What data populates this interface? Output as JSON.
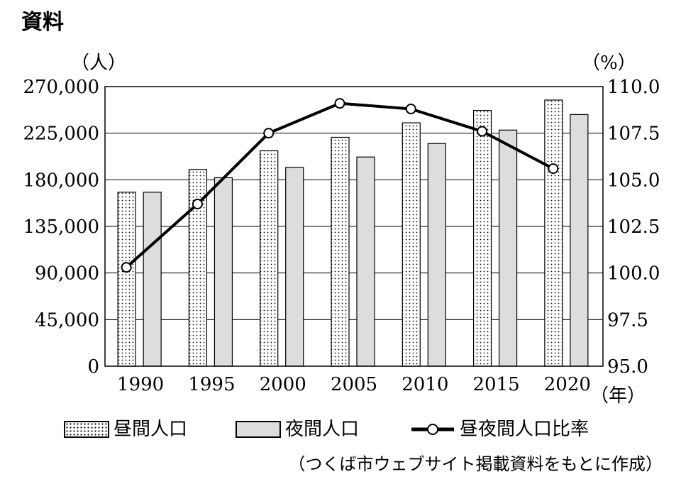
{
  "heading": "資料",
  "legend": {
    "daytime": "昼間人口",
    "nighttime": "夜間人口",
    "ratio": "昼夜間人口比率"
  },
  "source": "（つくば市ウェブサイト掲載資料をもとに作成）",
  "chart_data": {
    "type": "bar",
    "secondary_type": "line",
    "categories": [
      "1990",
      "1995",
      "2000",
      "2005",
      "2010",
      "2015",
      "2020"
    ],
    "series": [
      {
        "name": "昼間人口",
        "axis": "left",
        "pattern": "dots",
        "values": [
          168000,
          190000,
          208000,
          221000,
          235000,
          247000,
          257000
        ]
      },
      {
        "name": "夜間人口",
        "axis": "left",
        "color": "#dddddd",
        "values": [
          168000,
          182000,
          192000,
          202000,
          215000,
          228000,
          243000
        ]
      },
      {
        "name": "昼夜間人口比率",
        "axis": "right",
        "type": "line",
        "values": [
          100.3,
          103.7,
          107.5,
          109.1,
          108.8,
          107.6,
          105.6
        ]
      }
    ],
    "left_axis": {
      "label": "（人）",
      "ylim": [
        0,
        270000
      ],
      "ticks": [
        "0",
        "45,000",
        "90,000",
        "135,000",
        "180,000",
        "225,000",
        "270,000"
      ]
    },
    "right_axis": {
      "label": "（%）",
      "ylim": [
        95.0,
        110.0
      ],
      "ticks": [
        "95.0",
        "97.5",
        "100.0",
        "102.5",
        "105.0",
        "107.5",
        "110.0"
      ]
    },
    "xlabel": "（年）",
    "grid": true,
    "legend_position": "bottom"
  }
}
